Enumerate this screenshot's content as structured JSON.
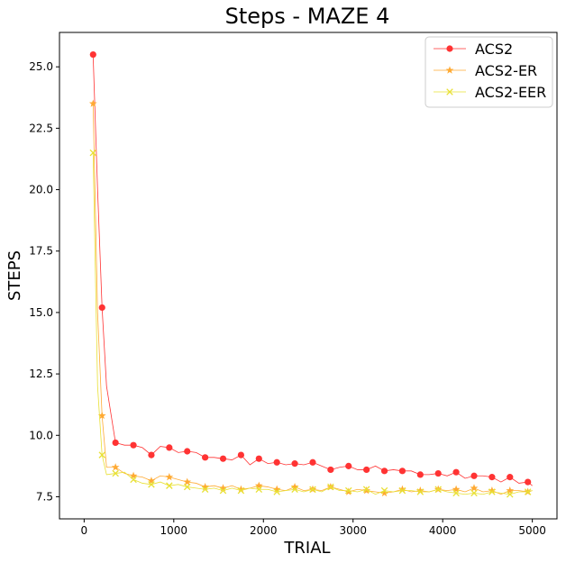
{
  "chart_data": {
    "type": "line",
    "title": "Steps - MAZE 4",
    "xlabel": "TRIAL",
    "ylabel": "STEPS",
    "xlim": [
      -275,
      5275
    ],
    "ylim": [
      6.6,
      26.4
    ],
    "x_ticks": [
      0,
      1000,
      2000,
      3000,
      4000,
      5000
    ],
    "y_ticks": [
      7.5,
      10.0,
      12.5,
      15.0,
      17.5,
      20.0,
      22.5,
      25.0
    ],
    "grid": false,
    "legend_position": "top-right",
    "series": [
      {
        "name": "ACS2",
        "color": "#ff3333",
        "marker": "circle",
        "x": [
          100,
          150,
          200,
          250,
          350,
          450,
          550,
          650,
          750,
          850,
          950,
          1050,
          1150,
          1250,
          1350,
          1450,
          1550,
          1650,
          1750,
          1850,
          1950,
          2050,
          2150,
          2250,
          2350,
          2450,
          2550,
          2650,
          2750,
          2850,
          2950,
          3050,
          3150,
          3250,
          3350,
          3450,
          3550,
          3650,
          3750,
          3850,
          3950,
          4050,
          4150,
          4250,
          4350,
          4450,
          4550,
          4650,
          4750,
          4850,
          4950,
          5000
        ],
        "y": [
          25.5,
          20.0,
          15.2,
          12.0,
          9.7,
          9.6,
          9.6,
          9.5,
          9.2,
          9.55,
          9.5,
          9.3,
          9.35,
          9.3,
          9.1,
          9.1,
          9.05,
          9.0,
          9.2,
          8.8,
          9.05,
          8.85,
          8.9,
          8.8,
          8.85,
          8.8,
          8.9,
          8.75,
          8.6,
          8.7,
          8.75,
          8.6,
          8.6,
          8.75,
          8.55,
          8.6,
          8.55,
          8.55,
          8.4,
          8.4,
          8.45,
          8.35,
          8.5,
          8.25,
          8.35,
          8.35,
          8.3,
          8.1,
          8.3,
          8.05,
          8.1,
          7.95
        ],
        "marker_every": 2
      },
      {
        "name": "ACS2-ER",
        "color": "#ffaa33",
        "marker": "star",
        "x": [
          100,
          150,
          200,
          250,
          350,
          450,
          550,
          650,
          750,
          850,
          950,
          1050,
          1150,
          1250,
          1350,
          1450,
          1550,
          1650,
          1750,
          1850,
          1950,
          2050,
          2150,
          2250,
          2350,
          2450,
          2550,
          2650,
          2750,
          2850,
          2950,
          3050,
          3150,
          3250,
          3350,
          3450,
          3550,
          3650,
          3750,
          3850,
          3950,
          4050,
          4150,
          4250,
          4350,
          4450,
          4550,
          4650,
          4750,
          4850,
          4950,
          5000
        ],
        "y": [
          23.5,
          15.0,
          10.8,
          8.7,
          8.7,
          8.45,
          8.35,
          8.3,
          8.15,
          8.35,
          8.3,
          8.2,
          8.1,
          8.05,
          7.9,
          7.95,
          7.85,
          7.95,
          7.8,
          7.85,
          7.95,
          7.9,
          7.8,
          7.75,
          7.9,
          7.75,
          7.8,
          7.75,
          7.9,
          7.8,
          7.7,
          7.8,
          7.75,
          7.7,
          7.65,
          7.7,
          7.8,
          7.7,
          7.75,
          7.7,
          7.8,
          7.75,
          7.8,
          7.7,
          7.85,
          7.7,
          7.75,
          7.6,
          7.75,
          7.75,
          7.7,
          7.75
        ],
        "marker_every": 2
      },
      {
        "name": "ACS2-EER",
        "color": "#e8e033",
        "marker": "x",
        "x": [
          100,
          150,
          200,
          250,
          350,
          450,
          550,
          650,
          750,
          850,
          950,
          1050,
          1150,
          1250,
          1350,
          1450,
          1550,
          1650,
          1750,
          1850,
          1950,
          2050,
          2150,
          2250,
          2350,
          2450,
          2550,
          2650,
          2750,
          2850,
          2950,
          3050,
          3150,
          3250,
          3350,
          3450,
          3550,
          3650,
          3750,
          3850,
          3950,
          4050,
          4150,
          4250,
          4350,
          4450,
          4550,
          4650,
          4750,
          4850,
          4950,
          5000
        ],
        "y": [
          21.5,
          12.0,
          9.2,
          8.4,
          8.45,
          8.5,
          8.2,
          8.05,
          8.0,
          8.1,
          7.95,
          8.0,
          7.9,
          7.85,
          7.8,
          7.85,
          7.75,
          7.85,
          7.75,
          7.85,
          7.8,
          7.8,
          7.7,
          7.75,
          7.8,
          7.7,
          7.8,
          7.7,
          7.9,
          7.75,
          7.75,
          7.7,
          7.8,
          7.6,
          7.75,
          7.7,
          7.75,
          7.75,
          7.7,
          7.7,
          7.8,
          7.7,
          7.65,
          7.6,
          7.65,
          7.6,
          7.7,
          7.65,
          7.6,
          7.7,
          7.7,
          7.75
        ],
        "marker_every": 2
      }
    ]
  }
}
